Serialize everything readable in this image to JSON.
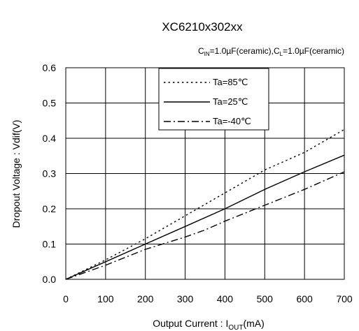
{
  "chart_data": {
    "type": "line",
    "title": "XC6210x302xx",
    "conditions": {
      "cin_sym": "C",
      "cin_sub": "IN",
      "cin_val": "=1.0µF(ceramic),",
      "cl_sym": "C",
      "cl_sub": "L",
      "cl_val": "=1.0µF(ceramic)"
    },
    "xlabel": {
      "prefix": "Output Current : I",
      "sub": "OUT",
      "suffix": "(mA)"
    },
    "ylabel": "Dropout Voltage : Vdif(V)",
    "xlim": [
      0,
      700
    ],
    "ylim": [
      0,
      0.6
    ],
    "xticks": [
      0,
      100,
      200,
      300,
      400,
      500,
      600,
      700
    ],
    "xtick_labels": [
      "0",
      "100",
      "200",
      "300",
      "400",
      "500",
      "600",
      "700"
    ],
    "yticks": [
      0,
      0.1,
      0.2,
      0.3,
      0.4,
      0.5,
      0.6
    ],
    "ytick_labels": [
      "0.0",
      "0.1",
      "0.2",
      "0.3",
      "0.4",
      "0.5",
      "0.6"
    ],
    "grid": true,
    "legend_position": "top-center",
    "series": [
      {
        "name": "Ta=85℃",
        "style": "dotted",
        "x": [
          0,
          100,
          200,
          300,
          400,
          500,
          600,
          700
        ],
        "y": [
          0,
          0.055,
          0.115,
          0.18,
          0.245,
          0.31,
          0.36,
          0.425
        ]
      },
      {
        "name": "Ta=25℃",
        "style": "solid",
        "x": [
          0,
          100,
          200,
          300,
          400,
          500,
          600,
          700
        ],
        "y": [
          0,
          0.05,
          0.1,
          0.15,
          0.2,
          0.255,
          0.305,
          0.352
        ]
      },
      {
        "name": "Ta=-40℃",
        "style": "dashdot",
        "x": [
          0,
          100,
          200,
          300,
          350,
          400,
          500,
          600,
          700
        ],
        "y": [
          0,
          0.04,
          0.085,
          0.12,
          0.14,
          0.165,
          0.21,
          0.255,
          0.305
        ]
      }
    ]
  }
}
